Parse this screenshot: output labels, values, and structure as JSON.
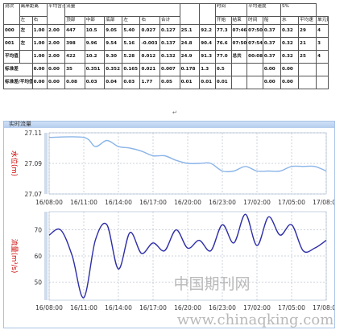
{
  "table": {
    "header1": [
      "测次",
      "离岸距离",
      "",
      "平均含沙",
      "流量",
      "",
      "",
      "",
      "",
      "",
      "",
      "",
      "",
      "时间",
      "",
      "平均速度",
      "",
      "",
      "S%",
      "",
      ""
    ],
    "header2": [
      "",
      "左",
      "右",
      "",
      "顶部",
      "中部",
      "底部",
      "左",
      "右",
      "合计",
      "宽度",
      "面积",
      "开始",
      "结束",
      "时间",
      "船",
      "水",
      "平均速",
      "单元数"
    ],
    "rows": [
      [
        "000",
        "左",
        "1.00",
        "2.00",
        "447",
        "10.5",
        "9.05",
        "5.40",
        "0.027",
        "0.127",
        "25.1",
        "92.2",
        "77.3",
        "07:46",
        "07:50",
        "0.37",
        "0.32",
        "29",
        "4"
      ],
      [
        "001",
        "左",
        "1.00",
        "2.00",
        "398",
        "9.96",
        "9.54",
        "5.16",
        "-0.003",
        "0.137",
        "24.8",
        "90.4",
        "76.6",
        "07:50",
        "07:54",
        "0.37",
        "0.32",
        "21",
        "3"
      ],
      [
        "平均值",
        "",
        "1.00",
        "2.00",
        "422",
        "10.2",
        "9.30",
        "5.28",
        "0.012",
        "0.132",
        "24.9",
        "91.3",
        "77.0",
        "总共",
        "00:08",
        "0.37",
        "0.32",
        "25",
        "4"
      ],
      [
        "标准差",
        "",
        "0.00",
        "0.00",
        "35",
        "0.351",
        "0.352",
        "0.165",
        "0.021",
        "0.007",
        "0.178",
        "1.3",
        "0.5",
        "",
        "",
        "0.00",
        "0.00",
        "",
        ""
      ],
      [
        "标准差/平均值",
        "",
        "0.00",
        "0.00",
        "0.08",
        "0.03",
        "0.04",
        "0.03",
        "1.77",
        "0.05",
        "0.01",
        "0.01",
        "0.01",
        "",
        "",
        "0.00",
        "0.00",
        "",
        ""
      ]
    ],
    "return_mark": "↵"
  },
  "chart": {
    "window_title": "实时流量",
    "watermark_main": "中国期刊网",
    "watermark_url": "www.chinaqking.com",
    "x_ticks": [
      "16/08:00",
      "16/11:00",
      "16/14:00",
      "16/17:00",
      "16/20:00",
      "16/23:00",
      "17/02:00",
      "17/05:00",
      "17/08:00"
    ],
    "water_level": {
      "ylabel": "水位(m)",
      "y_ticks": [
        "27.11",
        "27.09",
        "27.07"
      ],
      "ylim": [
        27.07,
        27.11
      ],
      "color": "#8ab4e8",
      "x": [
        0,
        3,
        4,
        5,
        6,
        7,
        8,
        9,
        10,
        11,
        12,
        13,
        14,
        15,
        16,
        17,
        18,
        19,
        20,
        21,
        22,
        23,
        24
      ],
      "y": [
        27.107,
        27.107,
        27.101,
        27.105,
        27.101,
        27.1,
        27.098,
        27.095,
        27.095,
        27.092,
        27.09,
        27.09,
        27.09,
        27.085,
        27.085,
        27.088,
        27.085,
        27.085,
        27.085,
        27.088,
        27.088,
        27.088,
        27.085
      ]
    },
    "discharge": {
      "ylabel": "流量(m³/s)",
      "y_ticks": [
        "70",
        "60",
        "50"
      ],
      "ylim": [
        43,
        77
      ],
      "color": "#2e2ea8",
      "x": [
        0,
        1,
        2,
        3,
        4,
        5,
        6,
        7,
        8,
        9,
        10,
        11,
        12,
        13,
        14,
        15,
        16,
        17,
        18,
        19,
        20,
        21,
        22,
        23,
        24
      ],
      "y": [
        68,
        70,
        60,
        44,
        66,
        72,
        55,
        69,
        61,
        65,
        62,
        70,
        63,
        66,
        62,
        72,
        65,
        76,
        64,
        75,
        68,
        72,
        62,
        63,
        66
      ]
    }
  }
}
